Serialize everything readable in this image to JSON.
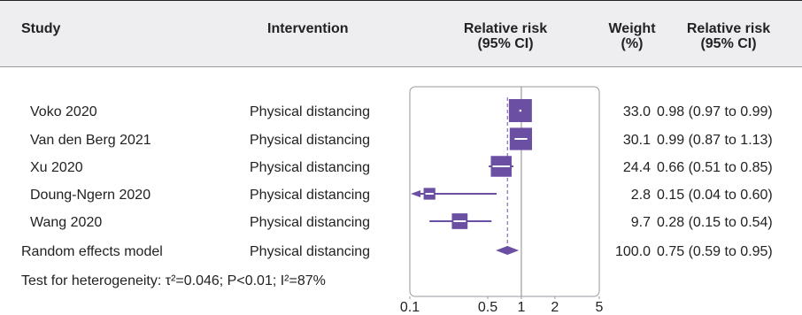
{
  "header": {
    "study": "Study",
    "intervention": "Intervention",
    "rr_line1": "Relative risk",
    "rr_line2": "(95% CI)",
    "weight_line1": "Weight",
    "weight_line2": "(%)",
    "rrv_line1": "Relative risk",
    "rrv_line2": "(95% CI)"
  },
  "colors": {
    "accent": "#6a4fa3",
    "header_bg": "#eeeef1",
    "text": "#222222"
  },
  "footer_text": "Test for heterogeneity: τ²=0.046; P<0.01; I²=87%",
  "chart_data": {
    "type": "forest",
    "x_scale": "log",
    "xlim": [
      0.1,
      5
    ],
    "x_ticks": [
      0.1,
      0.5,
      1,
      2,
      5
    ],
    "x_tick_labels": [
      "0.1",
      "0.5",
      "1",
      "2",
      "5"
    ],
    "null_line": 1,
    "pooled_line": 0.75,
    "studies": [
      {
        "study": "Voko 2020",
        "intervention": "Physical distancing",
        "rr": 0.98,
        "lo": 0.97,
        "hi": 0.99,
        "weight": 33.0,
        "weight_label": "33.0",
        "ci_label": "0.98 (0.97 to 0.99)"
      },
      {
        "study": "Van den Berg 2021",
        "intervention": "Physical distancing",
        "rr": 0.99,
        "lo": 0.87,
        "hi": 1.13,
        "weight": 30.1,
        "weight_label": "30.1",
        "ci_label": "0.99 (0.87 to 1.13)"
      },
      {
        "study": "Xu 2020",
        "intervention": "Physical distancing",
        "rr": 0.66,
        "lo": 0.51,
        "hi": 0.85,
        "weight": 24.4,
        "weight_label": "24.4",
        "ci_label": "0.66 (0.51 to 0.85)"
      },
      {
        "study": "Doung-Ngern 2020",
        "intervention": "Physical distancing",
        "rr": 0.15,
        "lo": 0.04,
        "hi": 0.6,
        "weight": 2.8,
        "weight_label": "2.8",
        "ci_label": "0.15 (0.04 to 0.60)"
      },
      {
        "study": "Wang 2020",
        "intervention": "Physical distancing",
        "rr": 0.28,
        "lo": 0.15,
        "hi": 0.54,
        "weight": 9.7,
        "weight_label": "9.7",
        "ci_label": "0.28 (0.15 to 0.54)"
      }
    ],
    "pooled": {
      "study": "Random effects model",
      "intervention": "Physical distancing",
      "rr": 0.75,
      "lo": 0.59,
      "hi": 0.95,
      "weight": 100.0,
      "weight_label": "100.0",
      "ci_label": "0.75 (0.59 to 0.95)"
    }
  }
}
